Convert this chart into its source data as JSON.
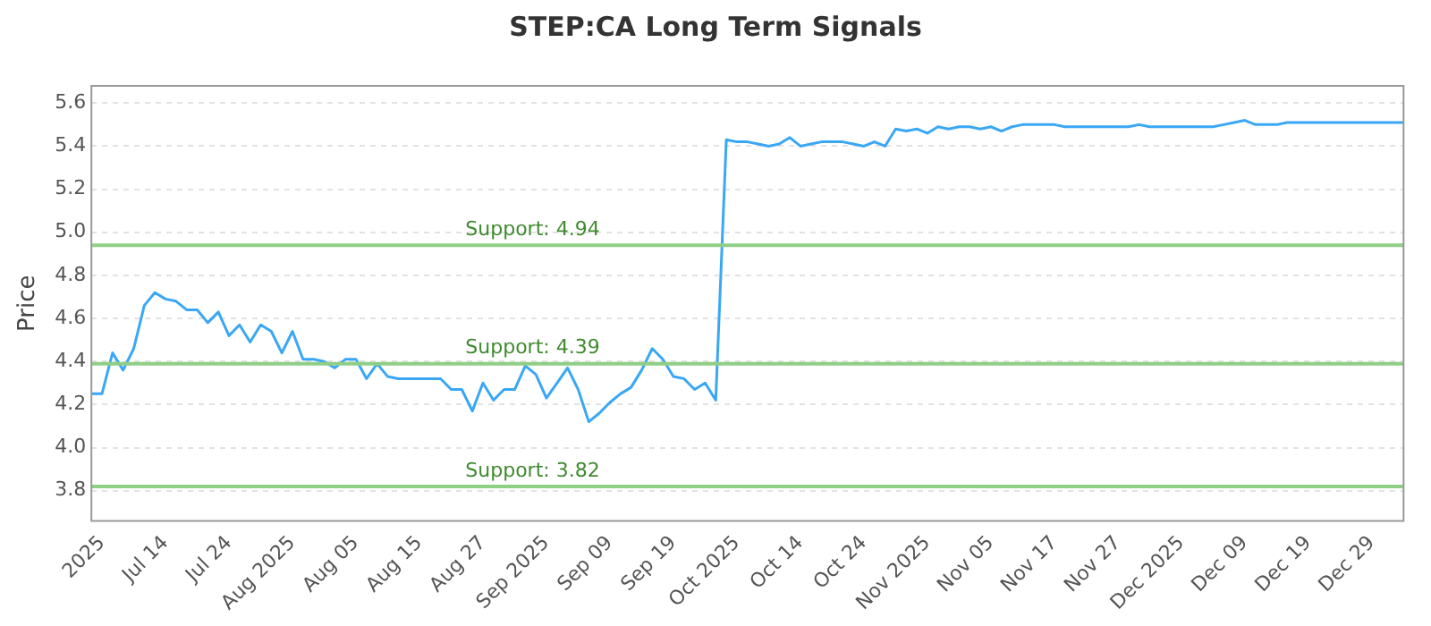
{
  "chart_data": {
    "type": "line",
    "title": "STEP:CA Long Term Signals",
    "ylabel": "Price",
    "categories": [
      null,
      "2025",
      null,
      null,
      null,
      null,
      null,
      "Jul 14",
      null,
      null,
      null,
      null,
      null,
      "Jul 24",
      null,
      null,
      null,
      null,
      null,
      "Aug 2025",
      null,
      null,
      null,
      null,
      null,
      "Aug 05",
      null,
      null,
      null,
      null,
      null,
      "Aug 15",
      null,
      null,
      null,
      null,
      null,
      "Aug 27",
      null,
      null,
      null,
      null,
      null,
      "Sep 2025",
      null,
      null,
      null,
      null,
      null,
      "Sep 09",
      null,
      null,
      null,
      null,
      null,
      "Sep 19",
      null,
      null,
      null,
      null,
      null,
      "Oct 2025",
      null,
      null,
      null,
      null,
      null,
      "Oct 14",
      null,
      null,
      null,
      null,
      null,
      "Oct 24",
      null,
      null,
      null,
      null,
      null,
      "Nov 2025",
      null,
      null,
      null,
      null,
      null,
      "Nov 05",
      null,
      null,
      null,
      null,
      null,
      "Nov 17",
      null,
      null,
      null,
      null,
      null,
      "Nov 27",
      null,
      null,
      null,
      null,
      null,
      "Dec 2025",
      null,
      null,
      null,
      null,
      null,
      "Dec 09",
      null,
      null,
      null,
      null,
      null,
      "Dec 19",
      null,
      null,
      null,
      null,
      null,
      "Dec 29",
      null,
      null,
      null
    ],
    "series": [
      {
        "color": "#3aa7f5",
        "values": [
          4.25,
          4.25,
          4.44,
          4.36,
          4.46,
          4.66,
          4.72,
          4.69,
          4.68,
          4.64,
          4.64,
          4.58,
          4.63,
          4.52,
          4.57,
          4.49,
          4.57,
          4.54,
          4.44,
          4.54,
          4.41,
          4.41,
          4.4,
          4.37,
          4.41,
          4.41,
          4.32,
          4.39,
          4.33,
          4.32,
          4.32,
          4.32,
          4.32,
          4.32,
          4.27,
          4.27,
          4.17,
          4.3,
          4.22,
          4.27,
          4.27,
          4.38,
          4.34,
          4.23,
          4.3,
          4.37,
          4.27,
          4.12,
          4.16,
          4.21,
          4.25,
          4.28,
          4.36,
          4.46,
          4.41,
          4.33,
          4.32,
          4.27,
          4.3,
          4.22,
          5.43,
          5.42,
          5.42,
          5.41,
          5.4,
          5.41,
          5.44,
          5.4,
          5.41,
          5.42,
          5.42,
          5.42,
          5.41,
          5.4,
          5.42,
          5.4,
          5.48,
          5.47,
          5.48,
          5.46,
          5.49,
          5.48,
          5.49,
          5.49,
          5.48,
          5.49,
          5.47,
          5.49,
          5.5,
          5.5,
          5.5,
          5.5,
          5.49,
          5.49,
          5.49,
          5.49,
          5.49,
          5.49,
          5.49,
          5.5,
          5.49,
          5.49,
          5.49,
          5.49,
          5.49,
          5.49,
          5.49,
          5.5,
          5.51,
          5.52,
          5.5,
          5.5,
          5.5,
          5.51,
          5.51,
          5.51,
          5.51,
          5.51,
          5.51,
          5.51,
          5.51,
          5.51,
          5.51,
          5.51,
          5.51
        ]
      }
    ],
    "ylim": [
      3.66,
      5.68
    ],
    "yticks": [
      3.8,
      {
        "value": 4,
        "label": "4.0"
      },
      4.2,
      4.4,
      4.6,
      4.8,
      {
        "value": 5,
        "label": "5.0"
      },
      5.2,
      5.4,
      5.6
    ],
    "grid": "y",
    "legend": false,
    "marker": "none",
    "line_style": "solid",
    "ref_lines": [
      {
        "axis": "y",
        "value": 4.94,
        "label": "Support: 4.94",
        "color": "#8fcf85"
      },
      {
        "axis": "y",
        "value": 4.39,
        "label": "Support: 4.39",
        "color": "#8fcf85"
      },
      {
        "axis": "y",
        "value": 3.82,
        "label": "Support: 3.82",
        "color": "#8fcf85"
      }
    ]
  }
}
